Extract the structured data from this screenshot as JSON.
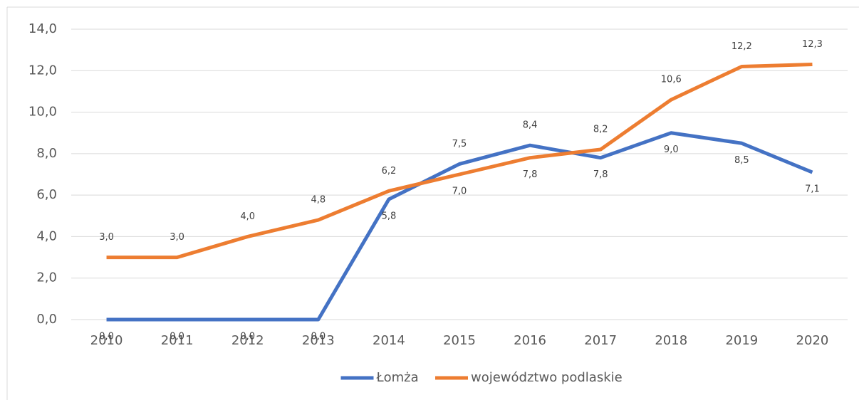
{
  "chart_data": {
    "type": "line",
    "categories": [
      "2010",
      "2011",
      "2012",
      "2013",
      "2014",
      "2015",
      "2016",
      "2017",
      "2018",
      "2019",
      "2020"
    ],
    "series": [
      {
        "name": "Łomża",
        "color": "#4472c4",
        "values": [
          0.0,
          0.0,
          0.0,
          0.0,
          5.8,
          7.5,
          8.4,
          7.8,
          9.0,
          8.5,
          7.1
        ],
        "value_labels": [
          "0,0",
          "0,0",
          "0,0",
          "0,0",
          "5,8",
          "7,5",
          "8,4",
          "7,8",
          "9,0",
          "8,5",
          "7,1"
        ]
      },
      {
        "name": "województwo podlaskie",
        "color": "#ed7d31",
        "values": [
          3.0,
          3.0,
          4.0,
          4.8,
          6.2,
          7.0,
          7.8,
          8.2,
          10.6,
          12.2,
          12.3
        ],
        "value_labels": [
          "3,0",
          "3,0",
          "4,0",
          "4,8",
          "6,2",
          "7,0",
          "7,8",
          "8,2",
          "10,6",
          "12,2",
          "12,3"
        ]
      }
    ],
    "ylim": [
      0,
      14
    ],
    "yticks": [
      {
        "value": 0,
        "label": "0,0"
      },
      {
        "value": 2,
        "label": "2,0"
      },
      {
        "value": 4,
        "label": "4,0"
      },
      {
        "value": 6,
        "label": "6,0"
      },
      {
        "value": 8,
        "label": "8,0"
      },
      {
        "value": 10,
        "label": "10,0"
      },
      {
        "value": 12,
        "label": "12,0"
      },
      {
        "value": 14,
        "label": "14,0"
      }
    ],
    "grid": true,
    "legend": "bottom"
  }
}
